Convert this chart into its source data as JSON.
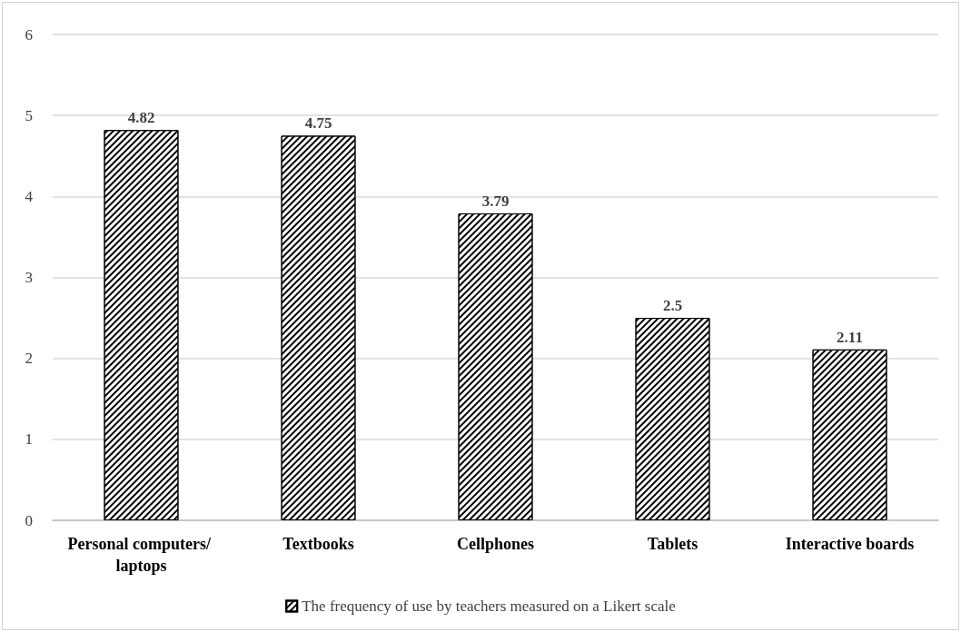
{
  "chart_data": {
    "type": "bar",
    "categories": [
      "Personal computers/ laptops",
      "Textbooks",
      "Cellphones",
      "Tablets",
      "Interactive boards"
    ],
    "series": [
      {
        "name": "The frequency of use by teachers measured on a Likert scale",
        "color": "#000000",
        "values": [
          4.82,
          4.75,
          3.79,
          2.5,
          2.11
        ]
      }
    ],
    "ylim": [
      0,
      6
    ],
    "yticks": [
      0,
      1,
      2,
      3,
      4,
      5,
      6
    ],
    "grid": "y",
    "legend": "bottom",
    "data_labels": true
  }
}
